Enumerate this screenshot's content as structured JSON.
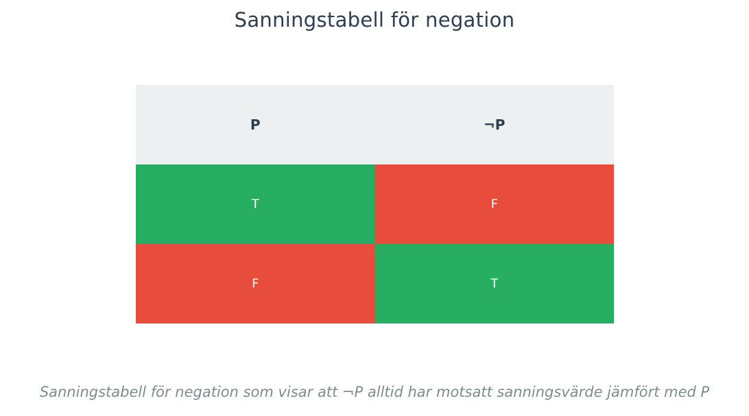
{
  "chart_data": {
    "type": "table",
    "title": "Sanningstabell för negation",
    "columns": [
      "P",
      "¬P"
    ],
    "rows": [
      [
        "T",
        "F"
      ],
      [
        "F",
        "T"
      ]
    ],
    "caption": "Sanningstabell för negation som visar att ¬P alltid har motsatt sanningsvärde jämfört med P",
    "colors": {
      "header_bg": "#ecf0f1",
      "header_text": "#2c3e50",
      "true_bg": "#27ae60",
      "false_bg": "#e74c3c",
      "cell_text": "#ffffff",
      "title": "#2c3e50",
      "caption": "#7f8c8d"
    }
  }
}
